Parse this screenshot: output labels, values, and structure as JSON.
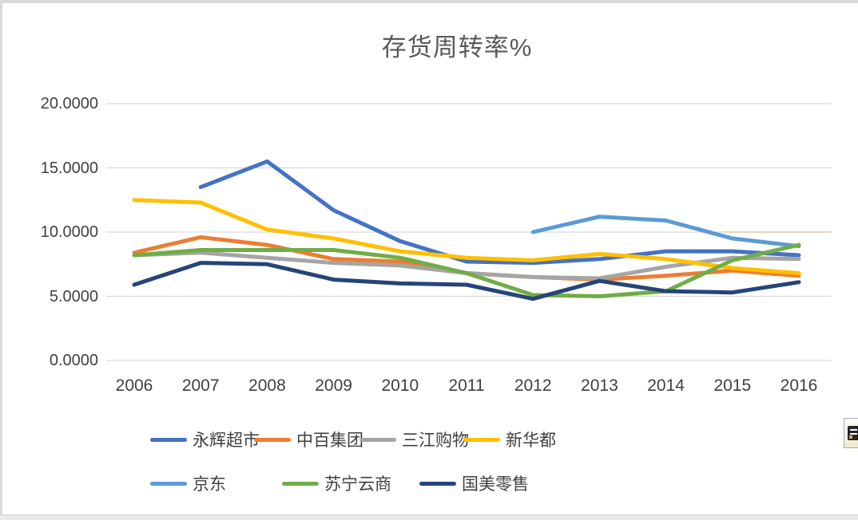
{
  "window": {
    "corner_button_icon": "chart-paste-options-icon"
  },
  "chart_data": {
    "type": "line",
    "title": "存货周转率%",
    "categories": [
      "2006",
      "2007",
      "2008",
      "2009",
      "2010",
      "2011",
      "2012",
      "2013",
      "2014",
      "2015",
      "2016"
    ],
    "series": [
      {
        "name": "永辉超市",
        "color": "#4472C4",
        "values": [
          null,
          13.5,
          15.5,
          11.7,
          9.3,
          7.7,
          7.6,
          7.9,
          8.5,
          8.5,
          8.2
        ]
      },
      {
        "name": "中百集团",
        "color": "#ED7D31",
        "values": [
          8.4,
          9.6,
          9.0,
          7.9,
          7.7,
          6.8,
          6.5,
          6.3,
          6.6,
          7.0,
          6.6
        ]
      },
      {
        "name": "三江购物",
        "color": "#A5A5A5",
        "values": [
          8.2,
          8.4,
          8.0,
          7.6,
          7.4,
          6.8,
          6.5,
          6.4,
          7.3,
          8.0,
          7.9
        ]
      },
      {
        "name": "新华都",
        "color": "#FFC000",
        "values": [
          12.5,
          12.3,
          10.2,
          9.5,
          8.5,
          8.0,
          7.8,
          8.3,
          7.9,
          7.2,
          6.8
        ]
      },
      {
        "name": "京东",
        "color": "#5B9BD5",
        "values": [
          null,
          null,
          null,
          null,
          null,
          null,
          10.0,
          11.2,
          10.9,
          9.5,
          8.9
        ]
      },
      {
        "name": "苏宁云商",
        "color": "#70AD47",
        "values": [
          8.2,
          8.6,
          8.6,
          8.6,
          8.0,
          6.8,
          5.1,
          5.0,
          5.4,
          7.8,
          9.0
        ]
      },
      {
        "name": "国美零售",
        "color": "#264478",
        "values": [
          5.9,
          7.6,
          7.5,
          6.3,
          6.0,
          5.9,
          4.8,
          6.2,
          5.4,
          5.3,
          6.1
        ]
      }
    ],
    "y_ticks": [
      {
        "label": "20.0000",
        "value": 20
      },
      {
        "label": "15.0000",
        "value": 15
      },
      {
        "label": "10.0000",
        "value": 10
      },
      {
        "label": "5.0000",
        "value": 5
      },
      {
        "label": "0.0000",
        "value": 0
      }
    ],
    "ylim": [
      0,
      20
    ],
    "xlabel": "",
    "ylabel": "",
    "grid": true,
    "gridline_color": "#D9D9D9",
    "highlight_segment_color": "#E8D9BE",
    "legend_position": "bottom"
  }
}
